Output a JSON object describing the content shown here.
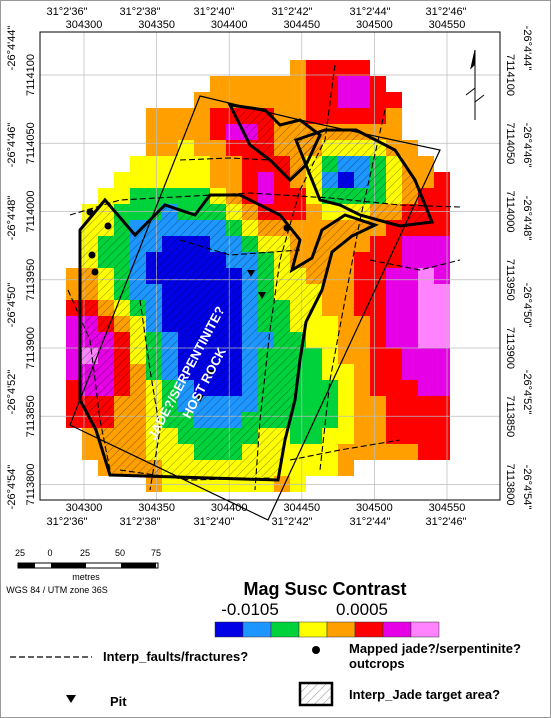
{
  "map": {
    "top_dms": [
      "31°2'36\"",
      "31°2'38\"",
      "31°2'40\"",
      "31°2'42\"",
      "31°2'44\"",
      "31°2'46\""
    ],
    "eastings": [
      304300,
      304350,
      304400,
      304450,
      304500,
      304550
    ],
    "left_dms": [
      "-26°4'44\"",
      "-26°4'46\"",
      "-26°4'48\"",
      "-26°4'50\"",
      "-26°4'52\"",
      "-26°4'54\""
    ],
    "northings": [
      7114100,
      7114050,
      7114000,
      7113950,
      7113900,
      7113850,
      7113800
    ],
    "label_line1": "JADE?/SERPENTINITE?",
    "label_line2": "HOST ROCK"
  },
  "scale_bar": {
    "ticks": [
      "25",
      "0",
      "25",
      "50",
      "75"
    ],
    "unit": "metres",
    "crs": "WGS 84 / UTM zone 36S"
  },
  "legend": {
    "title": "Mag Susc Contrast",
    "min_label": "-0.0105",
    "max_label": "0.0005",
    "colors": [
      "#0000e6",
      "#1e96ff",
      "#00d23c",
      "#ffff00",
      "#ffa000",
      "#ff0000",
      "#e600e6",
      "#ff82ff"
    ],
    "faults": "Interp_faults/fractures?",
    "outcrops_line1": "Mapped jade?/serpentinite?",
    "outcrops_line2": "outcrops",
    "pit": "Pit",
    "target": "Interp_Jade target area?"
  }
}
